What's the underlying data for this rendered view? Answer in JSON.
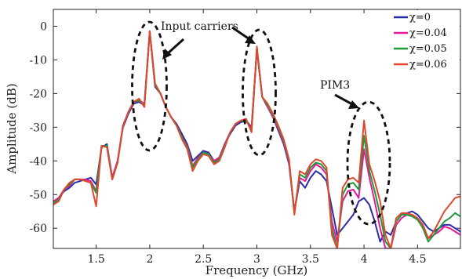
{
  "chart_data": {
    "type": "line",
    "title": "",
    "xlabel": "Frequency (GHz)",
    "ylabel": "Amplitude (dB)",
    "xlim": [
      1.1,
      4.9
    ],
    "ylim": [
      -66,
      5
    ],
    "xticks": [
      1.5,
      2,
      2.5,
      3,
      3.5,
      4,
      4.5
    ],
    "xtick_labels": [
      "1.5",
      "2",
      "2.5",
      "3",
      "3.5",
      "4",
      "4.5"
    ],
    "yticks": [
      0,
      -10,
      -20,
      -30,
      -40,
      -50,
      -60
    ],
    "ytick_labels": [
      "0",
      "-10",
      "-20",
      "-30",
      "-40",
      "-50",
      "-60"
    ],
    "grid": false,
    "legend_position": "top-right",
    "annotations": [
      "Input carriers",
      "PIM3"
    ],
    "x": [
      1.1,
      1.15,
      1.2,
      1.25,
      1.3,
      1.35,
      1.4,
      1.45,
      1.5,
      1.55,
      1.6,
      1.65,
      1.7,
      1.75,
      1.8,
      1.85,
      1.9,
      1.95,
      2.0,
      2.05,
      2.1,
      2.15,
      2.2,
      2.25,
      2.3,
      2.35,
      2.4,
      2.45,
      2.5,
      2.55,
      2.6,
      2.65,
      2.7,
      2.75,
      2.8,
      2.85,
      2.9,
      2.95,
      3.0,
      3.05,
      3.1,
      3.15,
      3.2,
      3.25,
      3.3,
      3.35,
      3.4,
      3.45,
      3.5,
      3.55,
      3.6,
      3.65,
      3.7,
      3.75,
      3.8,
      3.85,
      3.9,
      3.95,
      4.0,
      4.05,
      4.1,
      4.15,
      4.2,
      4.25,
      4.3,
      4.35,
      4.4,
      4.45,
      4.5,
      4.55,
      4.6,
      4.65,
      4.7,
      4.75,
      4.8,
      4.85,
      4.9
    ],
    "series": [
      {
        "name": "χ=0",
        "color": "#2b2ba8",
        "values": [
          -52,
          -51,
          -49,
          -48,
          -46.5,
          -46,
          -45.5,
          -45,
          -47,
          -36,
          -35,
          -45,
          -40,
          -30,
          -26,
          -23,
          -22.5,
          -23.5,
          -1.5,
          -18,
          -20,
          -24,
          -27,
          -29,
          -32,
          -35,
          -40,
          -38.5,
          -37,
          -37.5,
          -40,
          -39,
          -35,
          -32,
          -29.5,
          -28.5,
          -28,
          -30,
          -7,
          -21,
          -24,
          -27,
          -31,
          -35,
          -41,
          -55,
          -46,
          -48,
          -45,
          -43,
          -44,
          -46,
          -54,
          -62,
          -60,
          -58,
          -56,
          -52,
          -51,
          -53,
          -58,
          -64,
          -61,
          -62,
          -58,
          -56,
          -55.5,
          -55,
          -56,
          -58,
          -60,
          -61,
          -60,
          -59,
          -59,
          -60,
          -61
        ]
      },
      {
        "name": "χ=0.04",
        "color": "#e6199a",
        "values": [
          -52,
          -51,
          -48.5,
          -47.5,
          -45.5,
          -45.5,
          -45.5,
          -46,
          -49,
          -35.5,
          -35.5,
          -45,
          -40,
          -29.5,
          -25.5,
          -22.5,
          -22,
          -23,
          -1.5,
          -17.5,
          -20,
          -24,
          -27,
          -29.5,
          -33,
          -35.5,
          -41.5,
          -39,
          -37.5,
          -38,
          -40,
          -39,
          -35,
          -31.5,
          -29,
          -28,
          -28,
          -30.5,
          -6.5,
          -21,
          -24,
          -27,
          -30.5,
          -34.5,
          -40.5,
          -55,
          -45,
          -46,
          -43,
          -41,
          -42,
          -44,
          -58,
          -64,
          -52,
          -49,
          -48.5,
          -51,
          -36.5,
          -45,
          -52,
          -60,
          -66,
          -66,
          -59,
          -57,
          -56,
          -56,
          -57,
          -60,
          -63,
          -62,
          -61,
          -59.5,
          -60,
          -61,
          -62
        ]
      },
      {
        "name": "χ=0.05",
        "color": "#1e9a3a",
        "values": [
          -52.5,
          -51.5,
          -48.5,
          -47,
          -45.5,
          -45.5,
          -46,
          -46.5,
          -49.5,
          -35.5,
          -35.5,
          -45.5,
          -40.5,
          -29.5,
          -25.5,
          -22.5,
          -22,
          -23.5,
          -1.5,
          -17.5,
          -20,
          -24,
          -27,
          -29.5,
          -33,
          -36,
          -42,
          -39.5,
          -37.5,
          -38,
          -40.5,
          -39.5,
          -35.5,
          -31.5,
          -29,
          -28,
          -28,
          -31,
          -6.5,
          -21,
          -23.5,
          -26.5,
          -30,
          -34,
          -40,
          -55.5,
          -44,
          -45,
          -42,
          -40.5,
          -41,
          -43,
          -60,
          -66,
          -50,
          -47,
          -46.5,
          -48.5,
          -32.5,
          -43,
          -49,
          -56,
          -64,
          -66,
          -58,
          -56,
          -56,
          -56.5,
          -57.5,
          -60,
          -64,
          -62,
          -60,
          -58,
          -57,
          -55.5,
          -56.5
        ]
      },
      {
        "name": "χ=0.06",
        "color": "#e0482e",
        "values": [
          -53,
          -52,
          -48.5,
          -46.5,
          -45.5,
          -45.5,
          -46,
          -46.5,
          -53.5,
          -35.5,
          -36,
          -45.5,
          -40.5,
          -29.5,
          -25.5,
          -22.5,
          -21.5,
          -24,
          -1.5,
          -17,
          -20,
          -24,
          -27,
          -29.5,
          -33.5,
          -36.5,
          -43,
          -40,
          -38,
          -38.5,
          -41,
          -40,
          -36,
          -31.5,
          -29,
          -28,
          -27.5,
          -31.5,
          -6,
          -21,
          -23,
          -26,
          -29.5,
          -33.5,
          -39.5,
          -56,
          -43,
          -44,
          -41,
          -39.5,
          -40,
          -42,
          -62,
          -66,
          -48,
          -45.5,
          -45,
          -46.5,
          -28,
          -41,
          -46,
          -52,
          -62,
          -66,
          -57,
          -55.5,
          -55.5,
          -56,
          -57,
          -59,
          -63,
          -61,
          -58,
          -55,
          -53,
          -51,
          -50.5
        ]
      }
    ],
    "legend_labels": [
      "χ=0",
      "χ=0.04",
      "χ=0.05",
      "χ=0.06"
    ]
  }
}
